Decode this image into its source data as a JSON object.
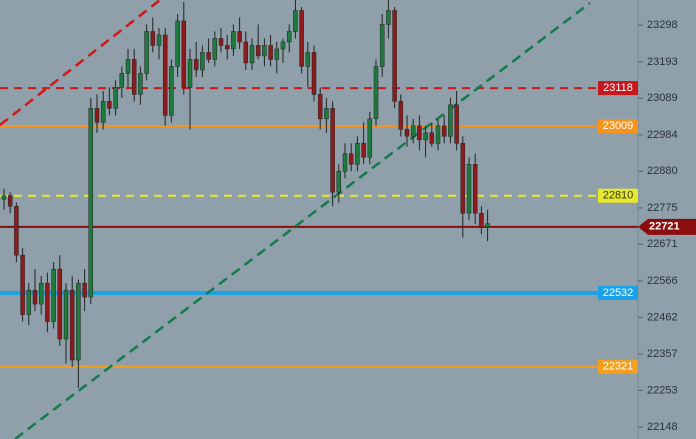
{
  "chart_data": {
    "type": "candlestick",
    "open": [
      22800,
      22810,
      22780,
      22640,
      22470,
      22540,
      22500,
      22560,
      22450,
      22600,
      22400,
      22540,
      22340,
      22560,
      22520,
      23060,
      23020,
      23080,
      23060,
      23120,
      23160,
      23200,
      23100,
      23160,
      23280,
      23240,
      23270,
      23040,
      23180,
      23310,
      23120,
      23200,
      23170,
      23220,
      23200,
      23260,
      23240,
      23230,
      23280,
      23250,
      23190,
      23240,
      23210,
      23240,
      23200,
      23230,
      23250,
      23280,
      23340,
      23180,
      23220,
      23100,
      23030,
      23060,
      22820,
      22880,
      22930,
      22900,
      22960,
      22920,
      23030,
      23180,
      23300,
      23340,
      23080,
      23000,
      22980,
      23010,
      22970,
      22990,
      22960,
      23010,
      22980,
      23070,
      22960,
      22760,
      22900,
      22760,
      22720
    ],
    "high": [
      22830,
      22820,
      22790,
      22660,
      22560,
      22600,
      22580,
      22590,
      22620,
      22640,
      22560,
      22580,
      22570,
      22600,
      23090,
      23100,
      23110,
      23120,
      23140,
      23180,
      23230,
      23230,
      23180,
      23300,
      23320,
      23290,
      23290,
      23200,
      23330,
      23365,
      23230,
      23250,
      23240,
      23260,
      23280,
      23290,
      23270,
      23300,
      23320,
      23280,
      23260,
      23300,
      23260,
      23270,
      23250,
      23260,
      23300,
      23370,
      23350,
      23250,
      23240,
      23120,
      23090,
      23080,
      22900,
      22960,
      22960,
      22980,
      23020,
      23050,
      23200,
      23330,
      23370,
      23350,
      23100,
      23040,
      23030,
      23040,
      23010,
      23020,
      23030,
      23040,
      23090,
      23110,
      22980,
      22920,
      22930,
      22780,
      22770
    ],
    "low": [
      22770,
      22760,
      22620,
      22450,
      22440,
      22480,
      22470,
      22420,
      22430,
      22380,
      22330,
      22320,
      22260,
      22480,
      22500,
      22990,
      23000,
      23040,
      23040,
      23090,
      23120,
      23080,
      23070,
      23140,
      23220,
      23200,
      23010,
      23020,
      23150,
      23100,
      23000,
      23150,
      23150,
      23190,
      23180,
      23220,
      23200,
      23210,
      23230,
      23170,
      23170,
      23200,
      23180,
      23180,
      23160,
      23190,
      23220,
      23260,
      23160,
      23120,
      23080,
      23000,
      22990,
      22780,
      22790,
      22860,
      22880,
      22880,
      22900,
      22900,
      23010,
      23150,
      23260,
      23060,
      22980,
      22950,
      22960,
      22940,
      22920,
      22950,
      22940,
      22960,
      22960,
      22940,
      22690,
      22740,
      22730,
      22700,
      22680
    ],
    "close": [
      22810,
      22780,
      22640,
      22470,
      22540,
      22500,
      22560,
      22450,
      22600,
      22400,
      22540,
      22340,
      22560,
      22520,
      23060,
      23020,
      23080,
      23060,
      23120,
      23160,
      23200,
      23100,
      23160,
      23280,
      23240,
      23270,
      23040,
      23180,
      23310,
      23120,
      23200,
      23170,
      23220,
      23200,
      23260,
      23240,
      23230,
      23280,
      23250,
      23190,
      23240,
      23210,
      23240,
      23200,
      23230,
      23250,
      23280,
      23340,
      23180,
      23220,
      23100,
      23030,
      23060,
      22820,
      22880,
      22930,
      22900,
      22960,
      22920,
      23030,
      23180,
      23300,
      23340,
      23080,
      23000,
      22980,
      23010,
      22970,
      22990,
      22960,
      23010,
      22980,
      23070,
      22960,
      22760,
      22900,
      22760,
      22720,
      22730
    ],
    "up_color": "#1f7a3f",
    "down_color": "#8e1b1b",
    "ylim": [
      22114,
      23370
    ],
    "yticks": [
      23298,
      23193,
      23089,
      22984,
      22880,
      22775,
      22671,
      22566,
      22462,
      22357,
      22253,
      22148
    ],
    "levels": [
      {
        "value": 23118,
        "color": "#c8161d",
        "style": "dashed",
        "text_color": "#ffffff"
      },
      {
        "value": 23009,
        "color": "#f7941d",
        "style": "solid",
        "text_color": "#ffffff"
      },
      {
        "value": 22810,
        "color": "#e8e82a",
        "style": "dashed",
        "text_color": "#333333"
      },
      {
        "value": 22721,
        "color": "#8b0d0d",
        "style": "solid",
        "text_color": "#ffffff"
      },
      {
        "value": 22532,
        "color": "#1aa3e8",
        "style": "thick",
        "text_color": "#ffffff"
      },
      {
        "value": 22321,
        "color": "#f2a01e",
        "style": "solid",
        "text_color": "#ffffff"
      }
    ]
  }
}
